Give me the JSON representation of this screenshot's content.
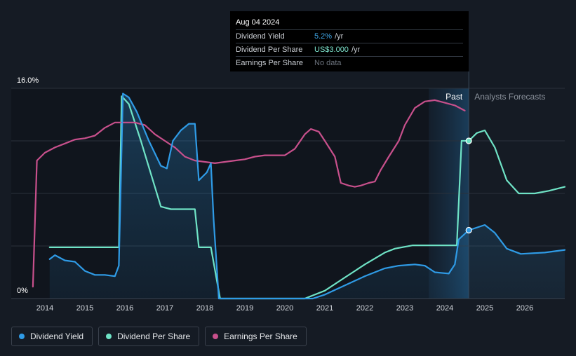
{
  "tooltip": {
    "date": "Aug 04 2024",
    "rows": [
      {
        "label": "Dividend Yield",
        "value": "5.2%",
        "unit": "/yr"
      },
      {
        "label": "Dividend Per Share",
        "value": "US$3.000",
        "unit": "/yr"
      },
      {
        "label": "Earnings Per Share",
        "value": "No data",
        "unit": ""
      }
    ]
  },
  "legend": [
    {
      "label": "Dividend Yield",
      "color": "#2f9be6"
    },
    {
      "label": "Dividend Per Share",
      "color": "#6fe3c6"
    },
    {
      "label": "Earnings Per Share",
      "color": "#c8508c"
    }
  ],
  "chart_data": {
    "type": "line",
    "title": "",
    "xlabel": "",
    "ylabel": "",
    "xlim": [
      2013.25,
      2027.0
    ],
    "ylim": [
      0,
      16
    ],
    "y_tick_labels": [
      "16.0%",
      "0%"
    ],
    "x_ticks": [
      2014,
      2015,
      2016,
      2017,
      2018,
      2019,
      2020,
      2021,
      2022,
      2023,
      2024,
      2025,
      2026
    ],
    "region_labels": {
      "past": "Past",
      "forecast": "Analysts Forecasts"
    },
    "past_end_x": 2024.6,
    "highlight_start_x": 2023.6,
    "series": [
      {
        "name": "Dividend Yield",
        "color": "#2f9be6",
        "fill": true,
        "points": [
          [
            2014.12,
            3.0
          ],
          [
            2014.25,
            3.3
          ],
          [
            2014.5,
            2.9
          ],
          [
            2014.75,
            2.8
          ],
          [
            2015.0,
            2.1
          ],
          [
            2015.25,
            1.8
          ],
          [
            2015.5,
            1.8
          ],
          [
            2015.75,
            1.7
          ],
          [
            2015.85,
            2.5
          ],
          [
            2015.95,
            15.6
          ],
          [
            2016.1,
            15.3
          ],
          [
            2016.3,
            14.2
          ],
          [
            2016.6,
            12.0
          ],
          [
            2016.9,
            10.1
          ],
          [
            2017.05,
            9.9
          ],
          [
            2017.2,
            12.0
          ],
          [
            2017.4,
            12.8
          ],
          [
            2017.6,
            13.3
          ],
          [
            2017.75,
            13.3
          ],
          [
            2017.85,
            9.0
          ],
          [
            2018.05,
            9.6
          ],
          [
            2018.15,
            10.3
          ],
          [
            2018.22,
            6.0
          ],
          [
            2018.35,
            0.0
          ],
          [
            2020.7,
            0.0
          ],
          [
            2021.0,
            0.3
          ],
          [
            2021.5,
            1.0
          ],
          [
            2022.0,
            1.7
          ],
          [
            2022.5,
            2.3
          ],
          [
            2022.85,
            2.5
          ],
          [
            2023.25,
            2.6
          ],
          [
            2023.5,
            2.5
          ],
          [
            2023.75,
            2.0
          ],
          [
            2024.1,
            1.9
          ],
          [
            2024.25,
            2.6
          ],
          [
            2024.35,
            4.5
          ],
          [
            2024.6,
            5.2
          ],
          [
            2025.0,
            5.6
          ],
          [
            2025.25,
            5.0
          ],
          [
            2025.55,
            3.8
          ],
          [
            2025.9,
            3.4
          ],
          [
            2026.5,
            3.5
          ],
          [
            2027.0,
            3.7
          ]
        ]
      },
      {
        "name": "Dividend Per Share",
        "color": "#6fe3c6",
        "fill": false,
        "points": [
          [
            2014.12,
            3.9
          ],
          [
            2015.85,
            3.9
          ],
          [
            2015.92,
            15.4
          ],
          [
            2016.1,
            14.8
          ],
          [
            2016.4,
            12.0
          ],
          [
            2016.7,
            9.0
          ],
          [
            2016.9,
            7.0
          ],
          [
            2017.15,
            6.8
          ],
          [
            2017.75,
            6.8
          ],
          [
            2017.85,
            3.9
          ],
          [
            2018.15,
            3.9
          ],
          [
            2018.38,
            0.0
          ],
          [
            2020.5,
            0.0
          ],
          [
            2021.0,
            0.6
          ],
          [
            2021.5,
            1.6
          ],
          [
            2022.0,
            2.6
          ],
          [
            2022.5,
            3.5
          ],
          [
            2022.75,
            3.8
          ],
          [
            2023.2,
            4.05
          ],
          [
            2024.3,
            4.05
          ],
          [
            2024.42,
            12.0
          ],
          [
            2024.6,
            12.0
          ],
          [
            2024.8,
            12.6
          ],
          [
            2025.0,
            12.8
          ],
          [
            2025.25,
            11.5
          ],
          [
            2025.55,
            9.0
          ],
          [
            2025.85,
            8.0
          ],
          [
            2026.25,
            8.0
          ],
          [
            2026.6,
            8.2
          ],
          [
            2027.0,
            8.5
          ]
        ]
      },
      {
        "name": "Earnings Per Share",
        "color": "#c8508c",
        "points": [
          [
            2013.7,
            0.9
          ],
          [
            2013.8,
            10.5
          ],
          [
            2014.0,
            11.1
          ],
          [
            2014.25,
            11.5
          ],
          [
            2014.5,
            11.8
          ],
          [
            2014.75,
            12.1
          ],
          [
            2015.0,
            12.2
          ],
          [
            2015.25,
            12.4
          ],
          [
            2015.5,
            13.0
          ],
          [
            2015.75,
            13.4
          ],
          [
            2016.0,
            13.4
          ],
          [
            2016.25,
            13.4
          ],
          [
            2016.5,
            13.2
          ],
          [
            2016.75,
            12.5
          ],
          [
            2017.0,
            12.0
          ],
          [
            2017.25,
            11.5
          ],
          [
            2017.5,
            10.8
          ],
          [
            2017.75,
            10.5
          ],
          [
            2018.0,
            10.4
          ],
          [
            2018.25,
            10.3
          ],
          [
            2018.5,
            10.4
          ],
          [
            2018.75,
            10.5
          ],
          [
            2019.0,
            10.6
          ],
          [
            2019.25,
            10.8
          ],
          [
            2019.5,
            10.9
          ],
          [
            2019.75,
            10.9
          ],
          [
            2020.0,
            10.9
          ],
          [
            2020.25,
            11.4
          ],
          [
            2020.5,
            12.5
          ],
          [
            2020.65,
            12.9
          ],
          [
            2020.85,
            12.7
          ],
          [
            2021.0,
            12.0
          ],
          [
            2021.25,
            10.8
          ],
          [
            2021.4,
            8.8
          ],
          [
            2021.6,
            8.6
          ],
          [
            2021.75,
            8.5
          ],
          [
            2021.9,
            8.6
          ],
          [
            2022.1,
            8.8
          ],
          [
            2022.25,
            8.9
          ],
          [
            2022.4,
            9.8
          ],
          [
            2022.6,
            10.8
          ],
          [
            2022.85,
            12.0
          ],
          [
            2023.0,
            13.2
          ],
          [
            2023.25,
            14.5
          ],
          [
            2023.5,
            15.0
          ],
          [
            2023.75,
            15.1
          ],
          [
            2024.0,
            14.9
          ],
          [
            2024.25,
            14.7
          ],
          [
            2024.5,
            14.3
          ]
        ]
      }
    ],
    "markers": [
      {
        "series": "Dividend Per Share",
        "x": 2024.6,
        "y": 12.0
      },
      {
        "series": "Dividend Yield",
        "x": 2024.6,
        "y": 5.2
      }
    ]
  }
}
